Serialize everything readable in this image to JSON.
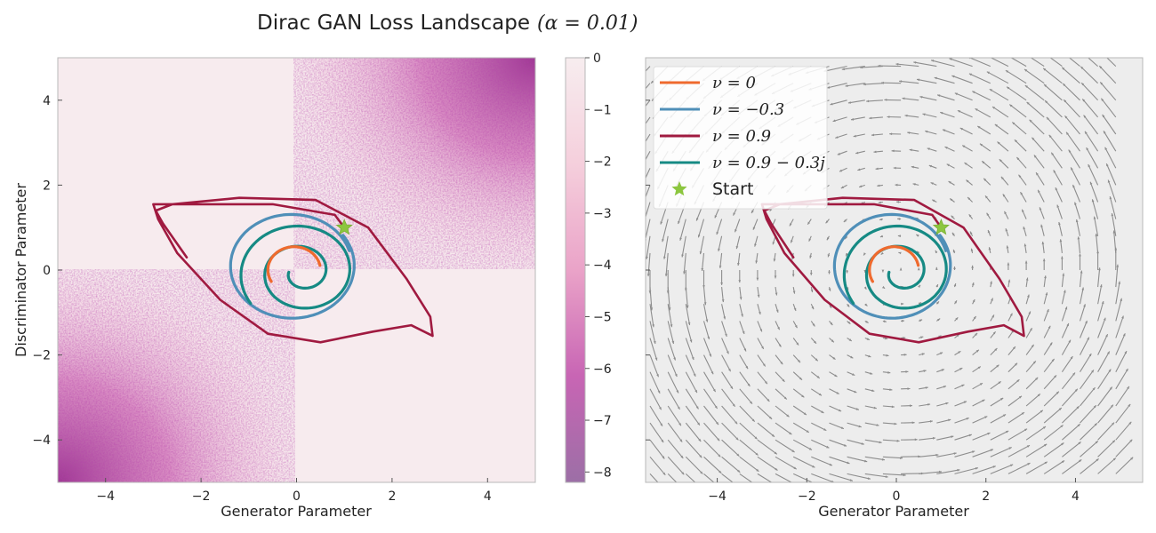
{
  "chart_data": [
    {
      "type": "heatmap",
      "title": "Dirac GAN Loss Landscape",
      "title_math": "(α = 0.01)",
      "xlabel": "Generator Parameter",
      "ylabel": "Discriminator Parameter",
      "xlim": [
        -5,
        5
      ],
      "ylim": [
        -5,
        5
      ],
      "xticks": [
        "−4",
        "−2",
        "0",
        "2",
        "4"
      ],
      "yticks": [
        "−4",
        "−2",
        "0",
        "2",
        "4"
      ],
      "colorbar": {
        "range": [
          -8.2,
          0
        ],
        "ticks": [
          "0",
          "−1",
          "−2",
          "−3",
          "−4",
          "−5",
          "−6",
          "−7",
          "−8"
        ],
        "colors": [
          "#9c6fa6",
          "#c060b0",
          "#e39ac8",
          "#f7e6ea"
        ]
      },
      "start": {
        "x": 1,
        "y": 1
      },
      "trajectories": [
        {
          "name": "ν = 0",
          "color": "#ef6a2e"
        },
        {
          "name": "ν = −0.3",
          "color": "#4f8fb8"
        },
        {
          "name": "ν = 0.9",
          "color": "#a01a40"
        },
        {
          "name": "ν = 0.9 − 0.3j",
          "color": "#168a84"
        }
      ]
    },
    {
      "type": "scatter",
      "subtype": "vector-field",
      "xlabel": "Generator Parameter",
      "xlim": [
        -5.6,
        5.5
      ],
      "ylim": [
        -5,
        5
      ],
      "xticks": [
        "−4",
        "−2",
        "0",
        "2",
        "4"
      ],
      "legend_position": "top-left",
      "legend": [
        {
          "label": "ν = 0",
          "color": "#ef6a2e",
          "marker": "line"
        },
        {
          "label": "ν = −0.3",
          "color": "#4f8fb8",
          "marker": "line"
        },
        {
          "label": "ν = 0.9",
          "color": "#a01a40",
          "marker": "line"
        },
        {
          "label": "ν = 0.9 − 0.3j",
          "color": "#168a84",
          "marker": "line"
        },
        {
          "label": "Start",
          "color": "#8cc63f",
          "marker": "star"
        }
      ]
    }
  ]
}
